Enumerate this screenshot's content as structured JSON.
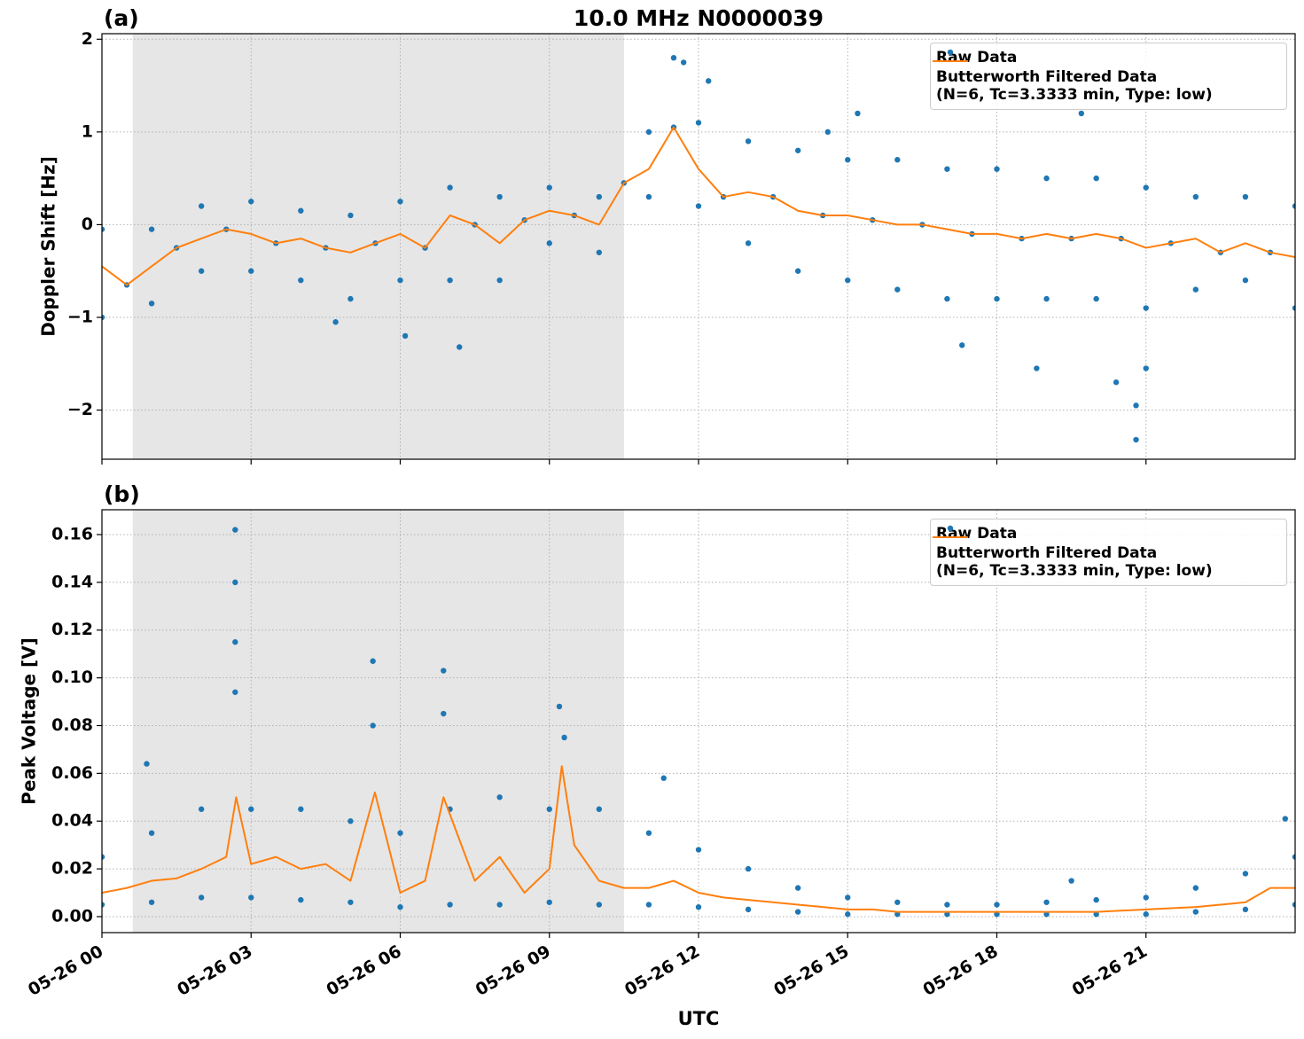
{
  "chart_data": [
    {
      "type": "scatter",
      "title": "10.0 MHz N0000039",
      "panel_label": "(a)",
      "ylabel": "Doppler Shift [Hz]",
      "xlim": [
        0,
        24
      ],
      "ylim": [
        -2.53,
        2.06
      ],
      "grid": true,
      "shaded_span": [
        0.62,
        10.5
      ],
      "legend": "upper right",
      "xtick_labels": false,
      "xticks": [
        {
          "value": 0,
          "label": "05-26 00"
        },
        {
          "value": 3,
          "label": "05-26 03"
        },
        {
          "value": 6,
          "label": "05-26 06"
        },
        {
          "value": 9,
          "label": "05-26 09"
        },
        {
          "value": 12,
          "label": "05-26 12"
        },
        {
          "value": 15,
          "label": "05-26 15"
        },
        {
          "value": 18,
          "label": "05-26 18"
        },
        {
          "value": 21,
          "label": "05-26 21"
        }
      ],
      "yticks": [
        {
          "value": -2,
          "label": "−2"
        },
        {
          "value": -1,
          "label": "−1"
        },
        0,
        1,
        2
      ],
      "series": [
        {
          "name": "Raw Data",
          "mode": "markers",
          "color": "#1f77b4",
          "x": [
            0,
            0,
            0.5,
            1,
            1,
            1.5,
            2,
            2,
            2.5,
            3,
            3,
            3.5,
            4,
            4,
            4.5,
            5,
            5,
            5.5,
            6,
            6,
            6.5,
            7,
            7,
            7.5,
            8,
            8,
            8.5,
            9,
            9,
            9.5,
            10,
            10,
            10.5,
            11,
            11,
            11.5,
            12,
            12,
            12.5,
            13,
            13,
            13.5,
            14,
            14,
            14.5,
            15,
            15,
            15.5,
            16,
            16,
            16.5,
            17,
            17,
            17.5,
            18,
            18,
            18.5,
            19,
            19,
            19.5,
            20,
            20,
            20.5,
            21,
            21,
            21.5,
            22,
            22,
            22.5,
            23,
            23,
            23.5,
            24,
            24,
            11.5,
            11.7,
            12.2,
            7.19,
            20.8,
            20.8,
            20.4,
            21.0,
            18.8,
            17.3,
            14.6,
            15.2,
            19.7,
            6.1,
            4.7
          ],
          "values": [
            -0.05,
            -1.0,
            -0.65,
            -0.05,
            -0.85,
            -0.25,
            0.2,
            -0.5,
            -0.05,
            0.25,
            -0.5,
            -0.2,
            0.15,
            -0.6,
            -0.25,
            0.1,
            -0.8,
            -0.2,
            0.25,
            -0.6,
            -0.25,
            0.4,
            -0.6,
            0.0,
            0.3,
            -0.6,
            0.05,
            0.4,
            -0.2,
            0.1,
            0.3,
            -0.3,
            0.45,
            1.0,
            0.3,
            1.05,
            1.1,
            0.2,
            0.3,
            0.9,
            -0.2,
            0.3,
            0.8,
            -0.5,
            0.1,
            0.7,
            -0.6,
            0.05,
            0.7,
            -0.7,
            0.0,
            0.6,
            -0.8,
            -0.1,
            0.6,
            -0.8,
            -0.15,
            0.5,
            -0.8,
            -0.15,
            0.5,
            -0.8,
            -0.15,
            0.4,
            -0.9,
            -0.2,
            0.3,
            -0.7,
            -0.3,
            0.3,
            -0.6,
            -0.3,
            0.2,
            -0.9,
            1.8,
            1.75,
            1.55,
            -1.32,
            -2.32,
            -1.95,
            -1.7,
            -1.55,
            -1.55,
            -1.3,
            1.0,
            1.2,
            1.2,
            -1.2,
            -1.05
          ]
        },
        {
          "name": "Butterworth Filtered Data\n(N=6, Tc=3.3333 min, Type: low)",
          "mode": "line",
          "color": "#ff7f0e",
          "x": [
            0,
            0.5,
            1,
            1.5,
            2,
            2.5,
            3,
            3.5,
            4,
            4.5,
            5,
            5.5,
            6,
            6.5,
            7,
            7.5,
            8,
            8.5,
            9,
            9.5,
            10,
            10.5,
            11,
            11.5,
            12,
            12.5,
            13,
            13.5,
            14,
            14.5,
            15,
            15.5,
            16,
            16.5,
            17,
            17.5,
            18,
            18.5,
            19,
            19.5,
            20,
            20.5,
            21,
            21.5,
            22,
            22.5,
            23,
            23.5,
            24
          ],
          "values": [
            -0.45,
            -0.65,
            -0.45,
            -0.25,
            -0.15,
            -0.05,
            -0.1,
            -0.2,
            -0.15,
            -0.25,
            -0.3,
            -0.2,
            -0.1,
            -0.25,
            0.1,
            0.0,
            -0.2,
            0.05,
            0.15,
            0.1,
            0.0,
            0.45,
            0.6,
            1.05,
            0.6,
            0.3,
            0.35,
            0.3,
            0.15,
            0.1,
            0.1,
            0.05,
            0.0,
            0.0,
            -0.05,
            -0.1,
            -0.1,
            -0.15,
            -0.1,
            -0.15,
            -0.1,
            -0.15,
            -0.25,
            -0.2,
            -0.15,
            -0.3,
            -0.2,
            -0.3,
            -0.35
          ]
        }
      ]
    },
    {
      "type": "scatter",
      "panel_label": "(b)",
      "ylabel": "Peak Voltage [V]",
      "xlabel": "UTC",
      "xlim": [
        0,
        24
      ],
      "ylim": [
        -0.0067,
        0.1704
      ],
      "grid": true,
      "shaded_span": [
        0.62,
        10.5
      ],
      "legend": "upper right",
      "xtick_labels": true,
      "xticks": [
        {
          "value": 0,
          "label": "05-26 00"
        },
        {
          "value": 3,
          "label": "05-26 03"
        },
        {
          "value": 6,
          "label": "05-26 06"
        },
        {
          "value": 9,
          "label": "05-26 09"
        },
        {
          "value": 12,
          "label": "05-26 12"
        },
        {
          "value": 15,
          "label": "05-26 15"
        },
        {
          "value": 18,
          "label": "05-26 18"
        },
        {
          "value": 21,
          "label": "05-26 21"
        }
      ],
      "yticks": [
        {
          "value": 0,
          "label": "0.00"
        },
        {
          "value": 0.02,
          "label": "0.02"
        },
        {
          "value": 0.04,
          "label": "0.04"
        },
        {
          "value": 0.06,
          "label": "0.06"
        },
        {
          "value": 0.08,
          "label": "0.08"
        },
        {
          "value": 0.1,
          "label": "0.10"
        },
        {
          "value": 0.12,
          "label": "0.12"
        },
        {
          "value": 0.14,
          "label": "0.14"
        },
        {
          "value": 0.16,
          "label": "0.16"
        }
      ],
      "series": [
        {
          "name": "Raw Data",
          "mode": "markers",
          "color": "#1f77b4",
          "x": [
            0,
            0,
            1,
            1,
            2,
            2,
            3,
            3,
            4,
            4,
            5,
            5,
            6,
            6,
            7,
            7,
            8,
            8,
            9,
            9,
            10,
            10,
            11,
            11,
            12,
            12,
            13,
            13,
            14,
            14,
            15,
            15,
            16,
            16,
            17,
            17,
            18,
            18,
            19,
            19,
            20,
            20,
            21,
            21,
            22,
            22,
            23,
            23,
            24,
            24,
            2.68,
            2.68,
            2.68,
            2.68,
            5.45,
            5.45,
            6.87,
            6.87,
            9.2,
            9.3,
            0.9,
            11.3,
            23.8,
            19.5
          ],
          "values": [
            0.025,
            0.005,
            0.035,
            0.006,
            0.045,
            0.008,
            0.045,
            0.008,
            0.045,
            0.007,
            0.04,
            0.006,
            0.035,
            0.004,
            0.045,
            0.005,
            0.05,
            0.005,
            0.045,
            0.006,
            0.045,
            0.005,
            0.035,
            0.005,
            0.028,
            0.004,
            0.02,
            0.003,
            0.012,
            0.002,
            0.008,
            0.001,
            0.006,
            0.001,
            0.005,
            0.001,
            0.005,
            0.001,
            0.006,
            0.001,
            0.007,
            0.001,
            0.008,
            0.001,
            0.012,
            0.002,
            0.018,
            0.003,
            0.025,
            0.005,
            0.162,
            0.14,
            0.115,
            0.094,
            0.107,
            0.08,
            0.103,
            0.085,
            0.088,
            0.075,
            0.064,
            0.058,
            0.041,
            0.015
          ]
        },
        {
          "name": "Butterworth Filtered Data\n(N=6, Tc=3.3333 min, Type: low)",
          "mode": "line",
          "color": "#ff7f0e",
          "x": [
            0,
            0.5,
            1,
            1.5,
            2,
            2.5,
            2.7,
            3,
            3.5,
            4,
            4.5,
            5,
            5.49,
            6,
            6.5,
            6.87,
            7.5,
            8,
            8.5,
            9,
            9.25,
            9.5,
            10,
            10.5,
            11,
            11.5,
            12,
            12.5,
            13,
            13.5,
            14,
            14.5,
            15,
            15.5,
            16,
            17,
            18,
            19,
            20,
            21,
            22,
            23,
            23.5,
            24
          ],
          "values": [
            0.01,
            0.012,
            0.015,
            0.016,
            0.02,
            0.025,
            0.05,
            0.022,
            0.025,
            0.02,
            0.022,
            0.015,
            0.052,
            0.01,
            0.015,
            0.05,
            0.015,
            0.025,
            0.01,
            0.02,
            0.063,
            0.03,
            0.015,
            0.012,
            0.012,
            0.015,
            0.01,
            0.008,
            0.007,
            0.006,
            0.005,
            0.004,
            0.003,
            0.003,
            0.002,
            0.002,
            0.002,
            0.002,
            0.002,
            0.003,
            0.004,
            0.006,
            0.012,
            0.012
          ]
        }
      ]
    }
  ]
}
